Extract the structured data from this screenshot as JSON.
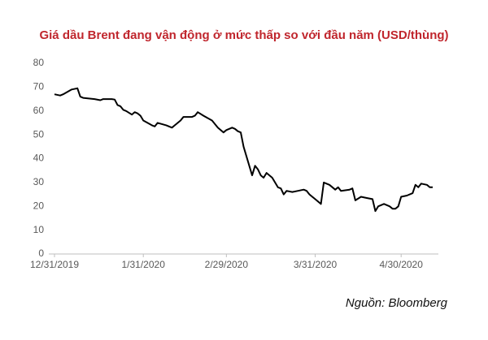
{
  "chart_data": {
    "type": "line",
    "title": "Giá dầu Brent đang vận động ở mức thấp so với đầu năm (USD/thùng)",
    "source": "Nguồn: Bloomberg",
    "x": [
      "12/31/2019",
      "1/2/2020",
      "1/3/2020",
      "1/6/2020",
      "1/8/2020",
      "1/9/2020",
      "1/10/2020",
      "1/14/2020",
      "1/16/2020",
      "1/17/2020",
      "1/20/2020",
      "1/21/2020",
      "1/22/2020",
      "1/23/2020",
      "1/24/2020",
      "1/25/2020",
      "1/27/2020",
      "1/28/2020",
      "1/29/2020",
      "1/30/2020",
      "1/31/2020",
      "2/3/2020",
      "2/4/2020",
      "2/5/2020",
      "2/8/2020",
      "2/10/2020",
      "2/11/2020",
      "2/13/2020",
      "2/14/2020",
      "2/17/2020",
      "2/18/2020",
      "2/19/2020",
      "2/21/2020",
      "2/24/2020",
      "2/26/2020",
      "2/27/2020",
      "2/28/2020",
      "2/29/2020",
      "3/2/2020",
      "3/3/2020",
      "3/4/2020",
      "3/5/2020",
      "3/6/2020",
      "3/9/2020",
      "3/10/2020",
      "3/11/2020",
      "3/12/2020",
      "3/13/2020",
      "3/14/2020",
      "3/16/2020",
      "3/17/2020",
      "3/18/2020",
      "3/19/2020",
      "3/20/2020",
      "3/21/2020",
      "3/23/2020",
      "3/25/2020",
      "3/27/2020",
      "3/28/2020",
      "3/29/2020",
      "3/31/2020",
      "4/2/2020",
      "4/3/2020",
      "4/5/2020",
      "4/6/2020",
      "4/7/2020",
      "4/8/2020",
      "4/9/2020",
      "4/12/2020",
      "4/13/2020",
      "4/14/2020",
      "4/16/2020",
      "4/18/2020",
      "4/20/2020",
      "4/21/2020",
      "4/22/2020",
      "4/24/2020",
      "4/26/2020",
      "4/27/2020",
      "4/28/2020",
      "4/29/2020",
      "4/30/2020",
      "5/2/2020",
      "5/4/2020",
      "5/5/2020",
      "5/6/2020",
      "5/7/2020",
      "5/9/2020",
      "5/10/2020",
      "5/11/2020"
    ],
    "series": [
      {
        "color": "#000000",
        "values": [
          67,
          66.5,
          67,
          69,
          69.5,
          66,
          65.5,
          65,
          64.5,
          65,
          65,
          64.8,
          62.5,
          62,
          60.5,
          60,
          58.5,
          59.5,
          59,
          58,
          56,
          54,
          53.5,
          55,
          54,
          53,
          54,
          56,
          57.5,
          57.5,
          58,
          59.5,
          58,
          56,
          53,
          52,
          51,
          52,
          53,
          52.5,
          51.5,
          51,
          45,
          33,
          37,
          35.5,
          33,
          32,
          34,
          32,
          30,
          28,
          27.5,
          25,
          26.5,
          26,
          26.5,
          27,
          26.5,
          25,
          23,
          21,
          30,
          29,
          28,
          27,
          28,
          26.5,
          27,
          27.5,
          22.5,
          24,
          23.5,
          23,
          18,
          20,
          21,
          20,
          19,
          19,
          20,
          24,
          24.5,
          25.5,
          29,
          28,
          29.5,
          29,
          28,
          28
        ]
      }
    ],
    "xlim": [
      "12/31/2019",
      "5/13/2020"
    ],
    "xticks": [
      "12/31/2019",
      "1/31/2020",
      "2/29/2020",
      "3/31/2020",
      "4/30/2020"
    ],
    "ylim": [
      0,
      80
    ],
    "yticks": [
      0,
      10,
      20,
      30,
      40,
      50,
      60,
      70,
      80
    ],
    "grid": false
  }
}
